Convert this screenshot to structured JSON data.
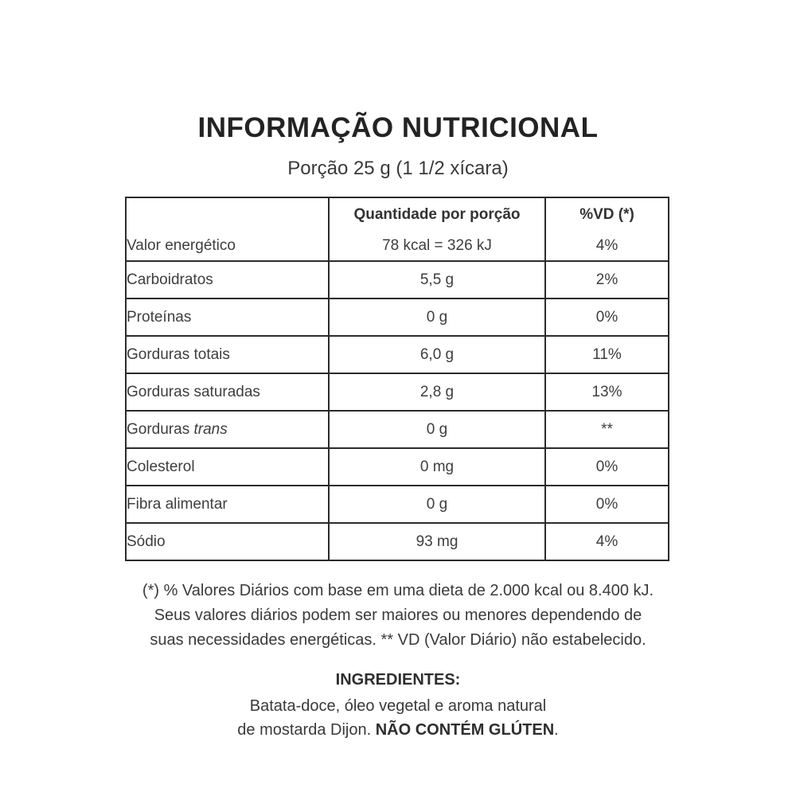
{
  "label": {
    "title": "INFORMAÇÃO NUTRICIONAL",
    "serving": "Porção 25 g (1 1/2 xícara)"
  },
  "table": {
    "headers": {
      "amount": "Quantidade por porção",
      "dv": "%VD (*)"
    },
    "rows": [
      {
        "label": "Valor energético",
        "amount": "78 kcal = 326 kJ",
        "dv": "4%"
      },
      {
        "label": "Carboidratos",
        "amount": "5,5 g",
        "dv": "2%"
      },
      {
        "label": "Proteínas",
        "amount": "0 g",
        "dv": "0%"
      },
      {
        "label": "Gorduras totais",
        "amount": "6,0 g",
        "dv": "11%"
      },
      {
        "label": "Gorduras saturadas",
        "amount": "2,8 g",
        "dv": "13%"
      },
      {
        "label_prefix": "Gorduras ",
        "label_italic": "trans",
        "amount": "0 g",
        "dv": "**"
      },
      {
        "label": "Colesterol",
        "amount": "0 mg",
        "dv": "0%"
      },
      {
        "label": "Fibra alimentar",
        "amount": "0 g",
        "dv": "0%"
      },
      {
        "label": "Sódio",
        "amount": "93 mg",
        "dv": "4%"
      }
    ]
  },
  "footnote": {
    "line1": "(*) % Valores Diários com base em uma dieta de 2.000 kcal ou 8.400 kJ.",
    "line2": "Seus valores diários podem ser maiores ou menores dependendo de",
    "line3": "suas necessidades energéticas. ** VD (Valor Diário) não estabelecido."
  },
  "ingredients": {
    "heading": "INGREDIENTES:",
    "line1": "Batata-doce, óleo vegetal e aroma natural",
    "line2_normal": "de mostarda Dijon. ",
    "line2_bold": "NÃO CONTÉM GLÚTEN",
    "line2_end": "."
  },
  "colors": {
    "background": "#ffffff",
    "text": "#3d3d3d",
    "border": "#2b2b2b"
  }
}
